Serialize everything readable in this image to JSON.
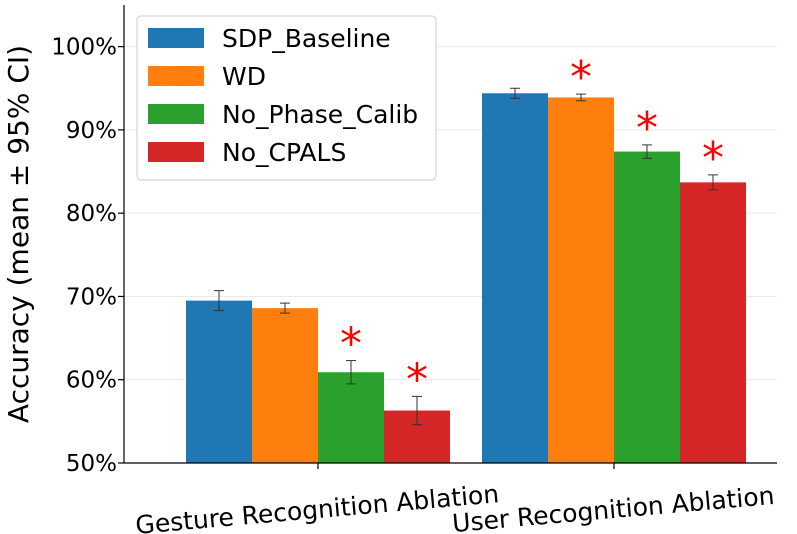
{
  "chart_data": {
    "type": "bar",
    "title": "",
    "xlabel": "",
    "ylabel": "Accuracy (mean ± 95% CI)",
    "ylim": [
      50,
      105
    ],
    "yticks": [
      50,
      60,
      70,
      80,
      90,
      100
    ],
    "ytick_labels": [
      "50%",
      "60%",
      "70%",
      "80%",
      "90%",
      "100%"
    ],
    "categories": [
      "Gesture Recognition Ablation",
      "User Recognition Ablation"
    ],
    "series": [
      {
        "name": "SDP_Baseline",
        "color": "#1f77b4",
        "values": [
          69.5,
          94.4
        ],
        "ci": [
          1.2,
          0.6
        ],
        "significant": [
          false,
          false
        ]
      },
      {
        "name": "WD",
        "color": "#ff7f0e",
        "values": [
          68.6,
          93.9
        ],
        "ci": [
          0.6,
          0.4
        ],
        "significant": [
          false,
          true
        ]
      },
      {
        "name": "No_Phase_Calib",
        "color": "#2ca02c",
        "values": [
          60.9,
          87.4
        ],
        "ci": [
          1.4,
          0.8
        ],
        "significant": [
          true,
          true
        ]
      },
      {
        "name": "No_CPALS",
        "color": "#d62728",
        "values": [
          56.3,
          83.7
        ],
        "ci": [
          1.7,
          0.9
        ],
        "significant": [
          true,
          true
        ]
      }
    ],
    "significance_marker": "*",
    "significance_color": "#ff0000",
    "grid": "horizontal",
    "legend_position": "top-left"
  }
}
